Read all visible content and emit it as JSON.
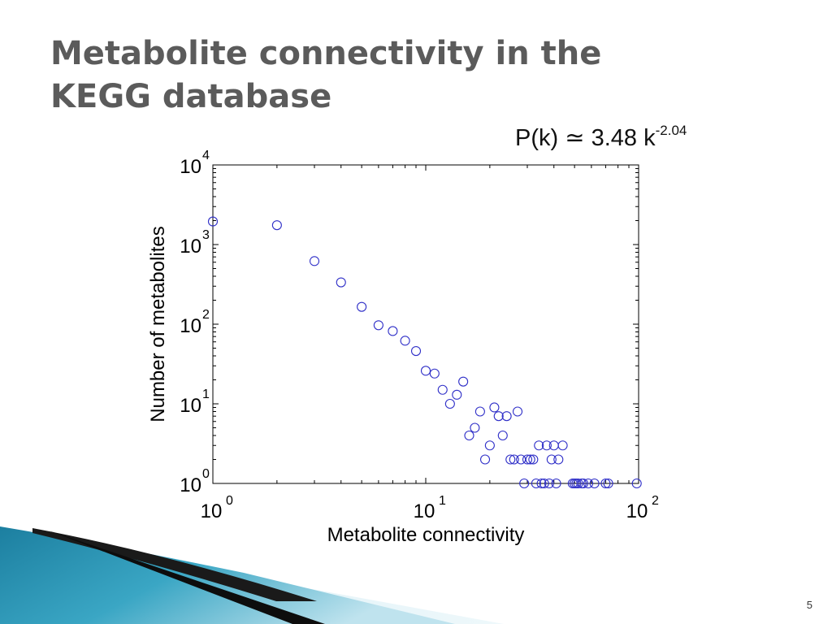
{
  "slide": {
    "title_line1": "Metabolite connectivity in the",
    "title_line2": "KEGG database",
    "page_number": "5",
    "title_color": "#5b5b5b"
  },
  "formula": {
    "lhs": "P(k)",
    "symbol": "≃",
    "coefficient": "3.48 k",
    "exponent": "-2.04"
  },
  "chart_data": {
    "type": "scatter",
    "title": "",
    "xlabel": "Metabolite connectivity",
    "ylabel": "Number of metabolites",
    "x_scale": "log",
    "y_scale": "log",
    "xlim": [
      1,
      100
    ],
    "ylim": [
      1,
      10000
    ],
    "x_ticks": [
      {
        "value": 1,
        "base": "10",
        "exp": "0"
      },
      {
        "value": 10,
        "base": "10",
        "exp": "1"
      },
      {
        "value": 100,
        "base": "10",
        "exp": "2"
      }
    ],
    "y_ticks": [
      {
        "value": 1,
        "base": "10",
        "exp": "0"
      },
      {
        "value": 10,
        "base": "10",
        "exp": "1"
      },
      {
        "value": 100,
        "base": "10",
        "exp": "2"
      },
      {
        "value": 1000,
        "base": "10",
        "exp": "3"
      },
      {
        "value": 10000,
        "base": "10",
        "exp": "4"
      }
    ],
    "grid": false,
    "marker": "open-circle",
    "marker_color": "#3030c8",
    "points": [
      [
        1,
        1950
      ],
      [
        2,
        1750
      ],
      [
        3,
        620
      ],
      [
        4,
        335
      ],
      [
        5,
        165
      ],
      [
        6,
        97
      ],
      [
        7,
        82
      ],
      [
        8,
        62
      ],
      [
        9,
        46
      ],
      [
        10,
        26
      ],
      [
        11,
        24
      ],
      [
        12,
        15
      ],
      [
        13,
        10
      ],
      [
        14,
        13
      ],
      [
        15,
        19
      ],
      [
        16,
        4
      ],
      [
        17,
        5
      ],
      [
        18,
        8
      ],
      [
        19,
        2
      ],
      [
        20,
        3
      ],
      [
        21,
        9
      ],
      [
        22,
        7
      ],
      [
        23,
        4
      ],
      [
        24,
        7
      ],
      [
        25,
        2
      ],
      [
        26,
        2
      ],
      [
        27,
        8
      ],
      [
        28,
        2
      ],
      [
        29,
        1
      ],
      [
        30,
        2
      ],
      [
        31,
        2
      ],
      [
        32,
        2
      ],
      [
        33,
        1
      ],
      [
        34,
        3
      ],
      [
        35,
        1
      ],
      [
        36,
        1
      ],
      [
        37,
        3
      ],
      [
        38,
        1
      ],
      [
        39,
        2
      ],
      [
        40,
        3
      ],
      [
        41,
        1
      ],
      [
        42,
        2
      ],
      [
        44,
        3
      ],
      [
        49,
        1
      ],
      [
        50,
        1
      ],
      [
        51,
        1
      ],
      [
        52,
        1
      ],
      [
        54,
        1
      ],
      [
        55,
        1
      ],
      [
        58,
        1
      ],
      [
        62,
        1
      ],
      [
        70,
        1
      ],
      [
        72,
        1
      ],
      [
        98,
        1
      ]
    ]
  }
}
